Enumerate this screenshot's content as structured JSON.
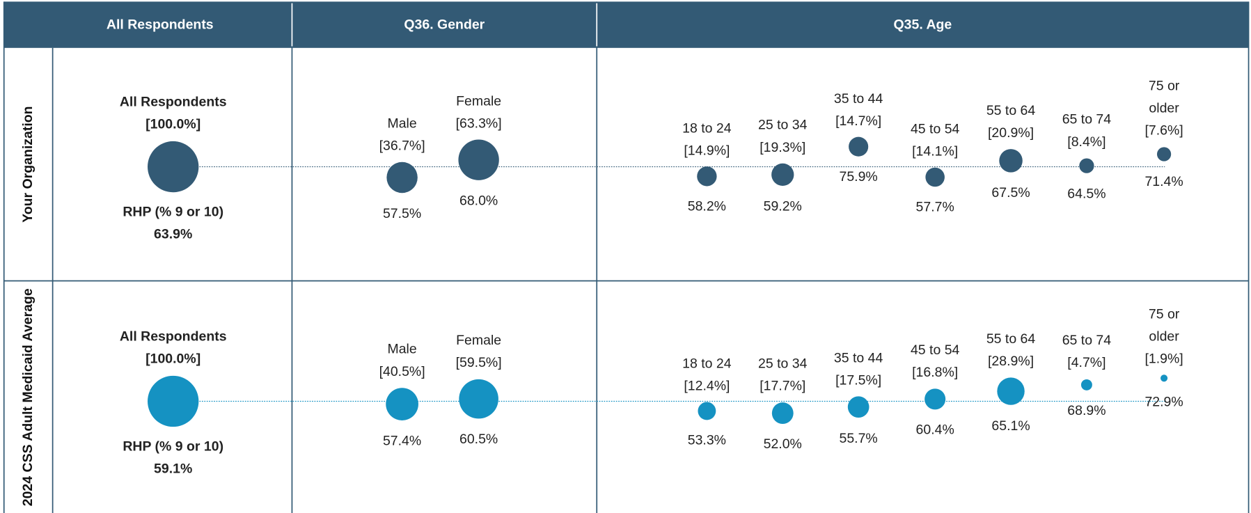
{
  "chart_data": {
    "type": "bubble",
    "columns": [
      "All Respondents",
      "Q36. Gender",
      "Q35. Age"
    ],
    "gender": [
      "Male",
      "Female"
    ],
    "age": [
      "18 to 24",
      "25 to 34",
      "35 to 44",
      "45 to 54",
      "55 to 64",
      "65 to 74",
      "75 or older"
    ],
    "rows": [
      {
        "name": "Your Organization",
        "color": "#335a75",
        "overall": {
          "label": "All Respondents",
          "size": 100.0,
          "size_label": "[100.0%]",
          "metric": "RHP (% 9 or 10)",
          "value": 63.9,
          "value_label": "63.9%"
        },
        "gender_data": {
          "sizes": [
            36.7,
            63.3
          ],
          "size_labels": [
            "[36.7%]",
            "[63.3%]"
          ],
          "values": [
            57.5,
            68.0
          ],
          "value_labels": [
            "57.5%",
            "68.0%"
          ]
        },
        "age_data": {
          "sizes": [
            14.9,
            19.3,
            14.7,
            14.1,
            20.9,
            8.4,
            7.6
          ],
          "size_labels": [
            "[14.9%]",
            "[19.3%]",
            "[14.7%]",
            "[14.1%]",
            "[20.9%]",
            "[8.4%]",
            "[7.6%]"
          ],
          "values": [
            58.2,
            59.2,
            75.9,
            57.7,
            67.5,
            64.5,
            71.4
          ],
          "value_labels": [
            "58.2%",
            "59.2%",
            "75.9%",
            "57.7%",
            "67.5%",
            "64.5%",
            "71.4%"
          ]
        }
      },
      {
        "name": "2024 CSS Adult Medicaid Average",
        "color": "#1592c2",
        "overall": {
          "label": "All Respondents",
          "size": 100.0,
          "size_label": "[100.0%]",
          "metric": "RHP (% 9 or 10)",
          "value": 59.1,
          "value_label": "59.1%"
        },
        "gender_data": {
          "sizes": [
            40.5,
            59.5
          ],
          "size_labels": [
            "[40.5%]",
            "[59.5%]"
          ],
          "values": [
            57.4,
            60.5
          ],
          "value_labels": [
            "57.4%",
            "60.5%"
          ]
        },
        "age_data": {
          "sizes": [
            12.4,
            17.7,
            17.5,
            16.8,
            28.9,
            4.7,
            1.9
          ],
          "size_labels": [
            "[12.4%]",
            "[17.7%]",
            "[17.5%]",
            "[16.8%]",
            "[28.9%]",
            "[4.7%]",
            "[1.9%]"
          ],
          "values": [
            53.3,
            52.0,
            55.7,
            60.4,
            65.1,
            68.9,
            72.9
          ],
          "value_labels": [
            "53.3%",
            "52.0%",
            "55.7%",
            "60.4%",
            "65.1%",
            "68.9%",
            "72.9%"
          ]
        }
      }
    ]
  }
}
